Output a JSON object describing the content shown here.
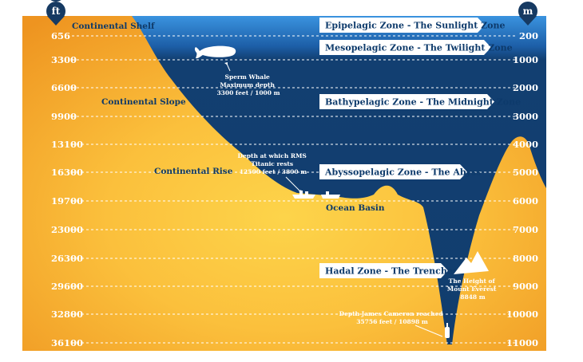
{
  "units": {
    "left": "ft",
    "right": "m"
  },
  "ft_ticks": [
    "656",
    "3300",
    "6600",
    "9900",
    "13100",
    "16300",
    "19700",
    "23000",
    "26300",
    "29600",
    "32800",
    "36100"
  ],
  "m_ticks": [
    "200",
    "1000",
    "2000",
    "3000",
    "4000",
    "5000",
    "6000",
    "7000",
    "8000",
    "9000",
    "10000",
    "11000"
  ],
  "zones": [
    "Epipelagic Zone - The Sunlight Zone",
    "Mesopelagic Zone -  The Twilight Zone",
    "Bathypelagic Zone -  The Midnight Zone",
    "Abyssopelagic Zone -  The Abyss",
    "Hadal Zone -  The Trenches"
  ],
  "landforms": {
    "shelf": "Continental Shelf",
    "slope": "Continental Slope",
    "rise": "Continental Rise",
    "basin": "Ocean Basin"
  },
  "annotations": {
    "whale": [
      "Sperm Whale",
      "Maximum depth",
      "3300 feet / 1000 m"
    ],
    "titanic": [
      "Depth at which RMS",
      "Titanic rests",
      "12500 feet / 3800 m"
    ],
    "everest": [
      "The Height of",
      "Mount Everest",
      "8848 m"
    ],
    "cameron": [
      "Depth James Cameron reached",
      "35756 feet / 10898 m"
    ]
  },
  "colors": {
    "sunlight_water": "#2e7fd0",
    "deep_water": "#113d6e",
    "land_light": "#fcd047",
    "land_dark": "#ef9a1f",
    "label_text": "#0f3a68",
    "pin": "#163a62"
  }
}
